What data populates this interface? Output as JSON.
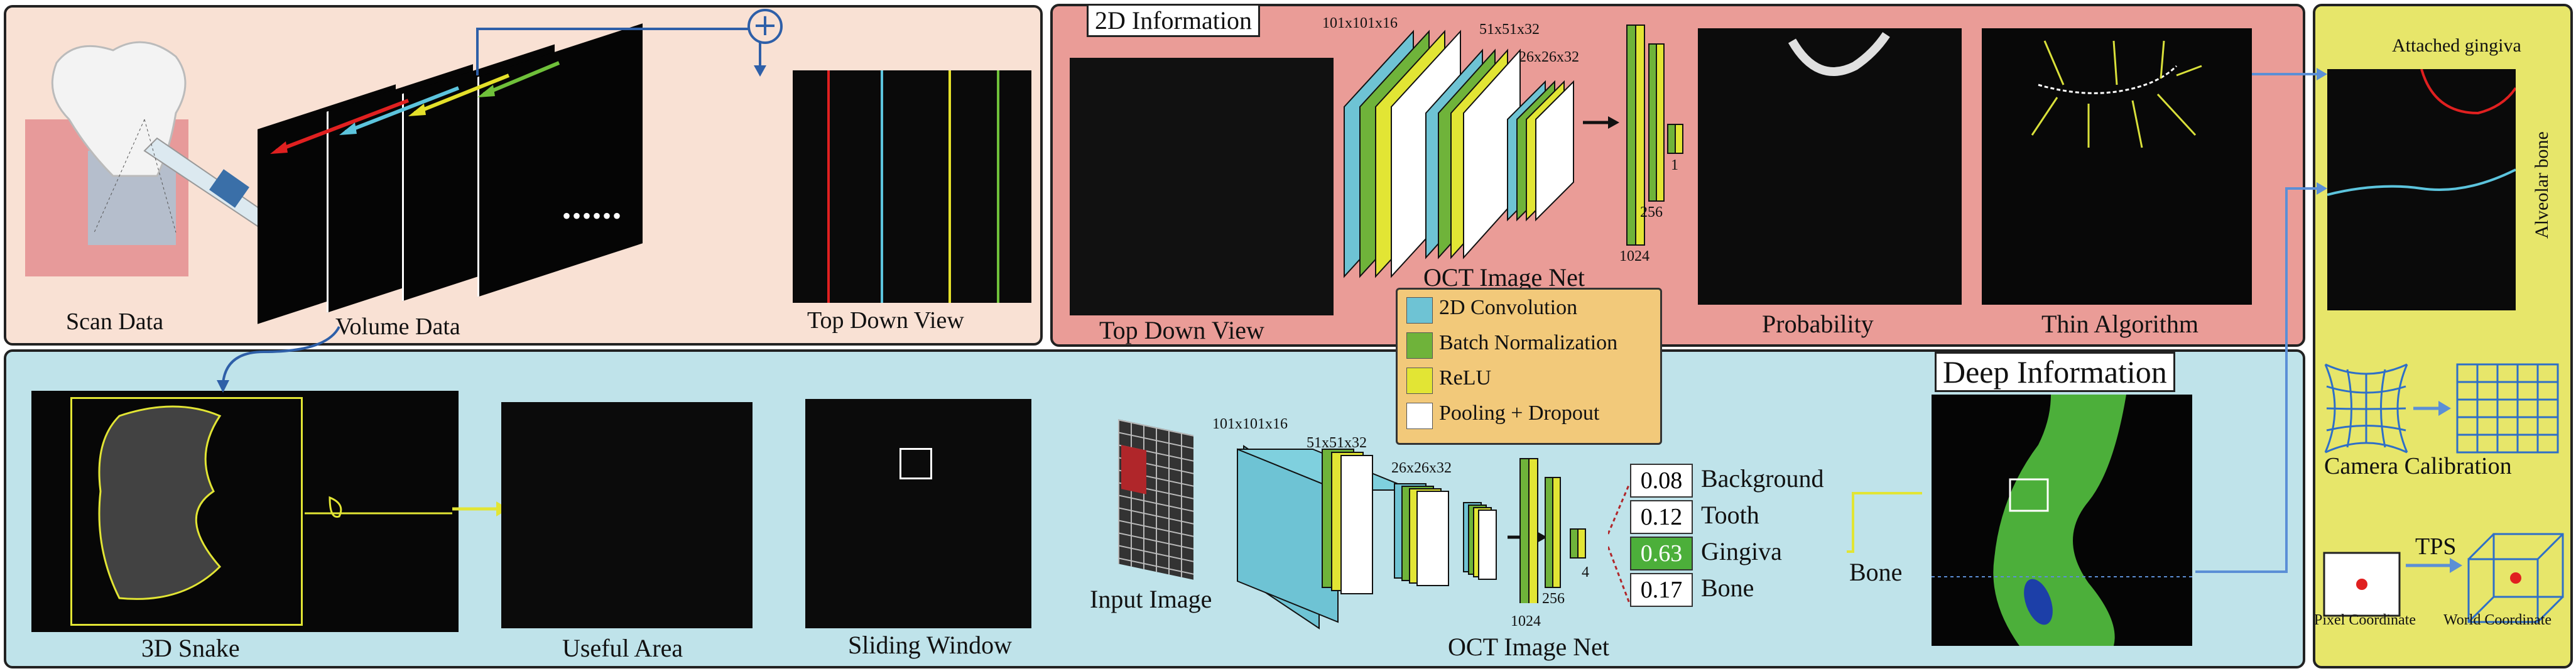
{
  "scan_panel": {
    "scan_data_label": "Scan Data",
    "volume_data_label": "Volume Data",
    "top_down_label": "Top Down View",
    "plus_symbol": "+",
    "dots": "••••••"
  },
  "twod_panel": {
    "title": "2D Information",
    "top_down_label": "Top Down View",
    "net_label": "OCT Image Net",
    "probability_label": "Probability",
    "thin_label": "Thin Algorithm",
    "dims": [
      "101x101x16",
      "51x51x32",
      "26x26x32"
    ],
    "fc_sizes": [
      "1024",
      "256",
      "1"
    ]
  },
  "legend": {
    "items": [
      {
        "label": "2D Convolution",
        "color": "#6ec3d4"
      },
      {
        "label": "Batch Normalization",
        "color": "#6fb33a"
      },
      {
        "label": "ReLU",
        "color": "#e2e534"
      },
      {
        "label": "Pooling + Dropout",
        "color": "#ffffff"
      }
    ]
  },
  "deep_panel": {
    "title": "Deep Information",
    "snake_label": "3D Snake",
    "useful_label": "Useful Area",
    "sliding_label": "Sliding Window",
    "input_label": "Input Image",
    "net_label": "OCT Image Net",
    "dims": [
      "101x101x16",
      "51x51x32",
      "26x26x32"
    ],
    "fc_sizes": [
      "1024",
      "256",
      "4"
    ],
    "bone_label": "Bone",
    "probabilities": [
      {
        "value": "0.08",
        "label": "Background"
      },
      {
        "value": "0.12",
        "label": "Tooth"
      },
      {
        "value": "0.63",
        "label": "Gingiva",
        "highlight": true
      },
      {
        "value": "0.17",
        "label": "Bone"
      }
    ]
  },
  "right_panel": {
    "attached_gingiva": "Attached gingiva",
    "alveolar_bone": "Alveolar bone",
    "camera_calibration": "Camera Calibration",
    "tps": "TPS",
    "pixel_coordinate": "Pixel Coordinate",
    "world_coordinate": "World Coordinate"
  },
  "colors": {
    "scan_bg": "#f9e1d4",
    "twod_bg": "#ea9c97",
    "deep_bg": "#bfe3ea",
    "right_bg": "#e7e66a",
    "legend_bg": "#f2c97a",
    "highlight": "#4caf3a",
    "arrow_blue": "#2e5fa8"
  }
}
